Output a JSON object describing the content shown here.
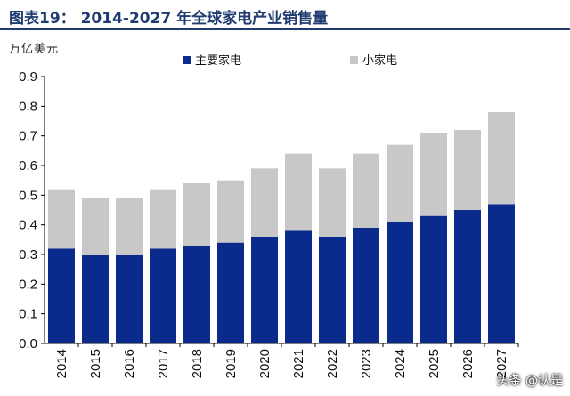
{
  "header": {
    "title": "图表19： 2014-2027 年全球家电产业销售量",
    "unit_label": "万亿美元"
  },
  "watermark": "头条 @认是",
  "colors": {
    "major": "#0a2a8c",
    "small": "#c8c8c8",
    "title": "#1f3b70"
  },
  "chart_data": {
    "type": "bar",
    "stacked": true,
    "title": "2014-2027 年全球家电产业销售量",
    "ylabel": "万亿美元",
    "xlabel": "",
    "ylim": [
      0,
      0.9
    ],
    "yticks": [
      "0.0",
      "0.1",
      "0.2",
      "0.3",
      "0.4",
      "0.5",
      "0.6",
      "0.7",
      "0.8",
      "0.9"
    ],
    "categories": [
      "2014",
      "2015",
      "2016",
      "2017",
      "2018",
      "2019",
      "2020",
      "2021",
      "2022",
      "2023",
      "2024",
      "2025",
      "2026",
      "2027"
    ],
    "series": [
      {
        "name": "主要家电",
        "values": [
          0.32,
          0.3,
          0.3,
          0.32,
          0.33,
          0.34,
          0.36,
          0.38,
          0.36,
          0.39,
          0.41,
          0.43,
          0.45,
          0.47
        ]
      },
      {
        "name": "小家电",
        "values": [
          0.2,
          0.19,
          0.19,
          0.2,
          0.21,
          0.21,
          0.23,
          0.26,
          0.23,
          0.25,
          0.26,
          0.28,
          0.27,
          0.31
        ]
      }
    ],
    "grid": false,
    "legend_position": "top"
  }
}
